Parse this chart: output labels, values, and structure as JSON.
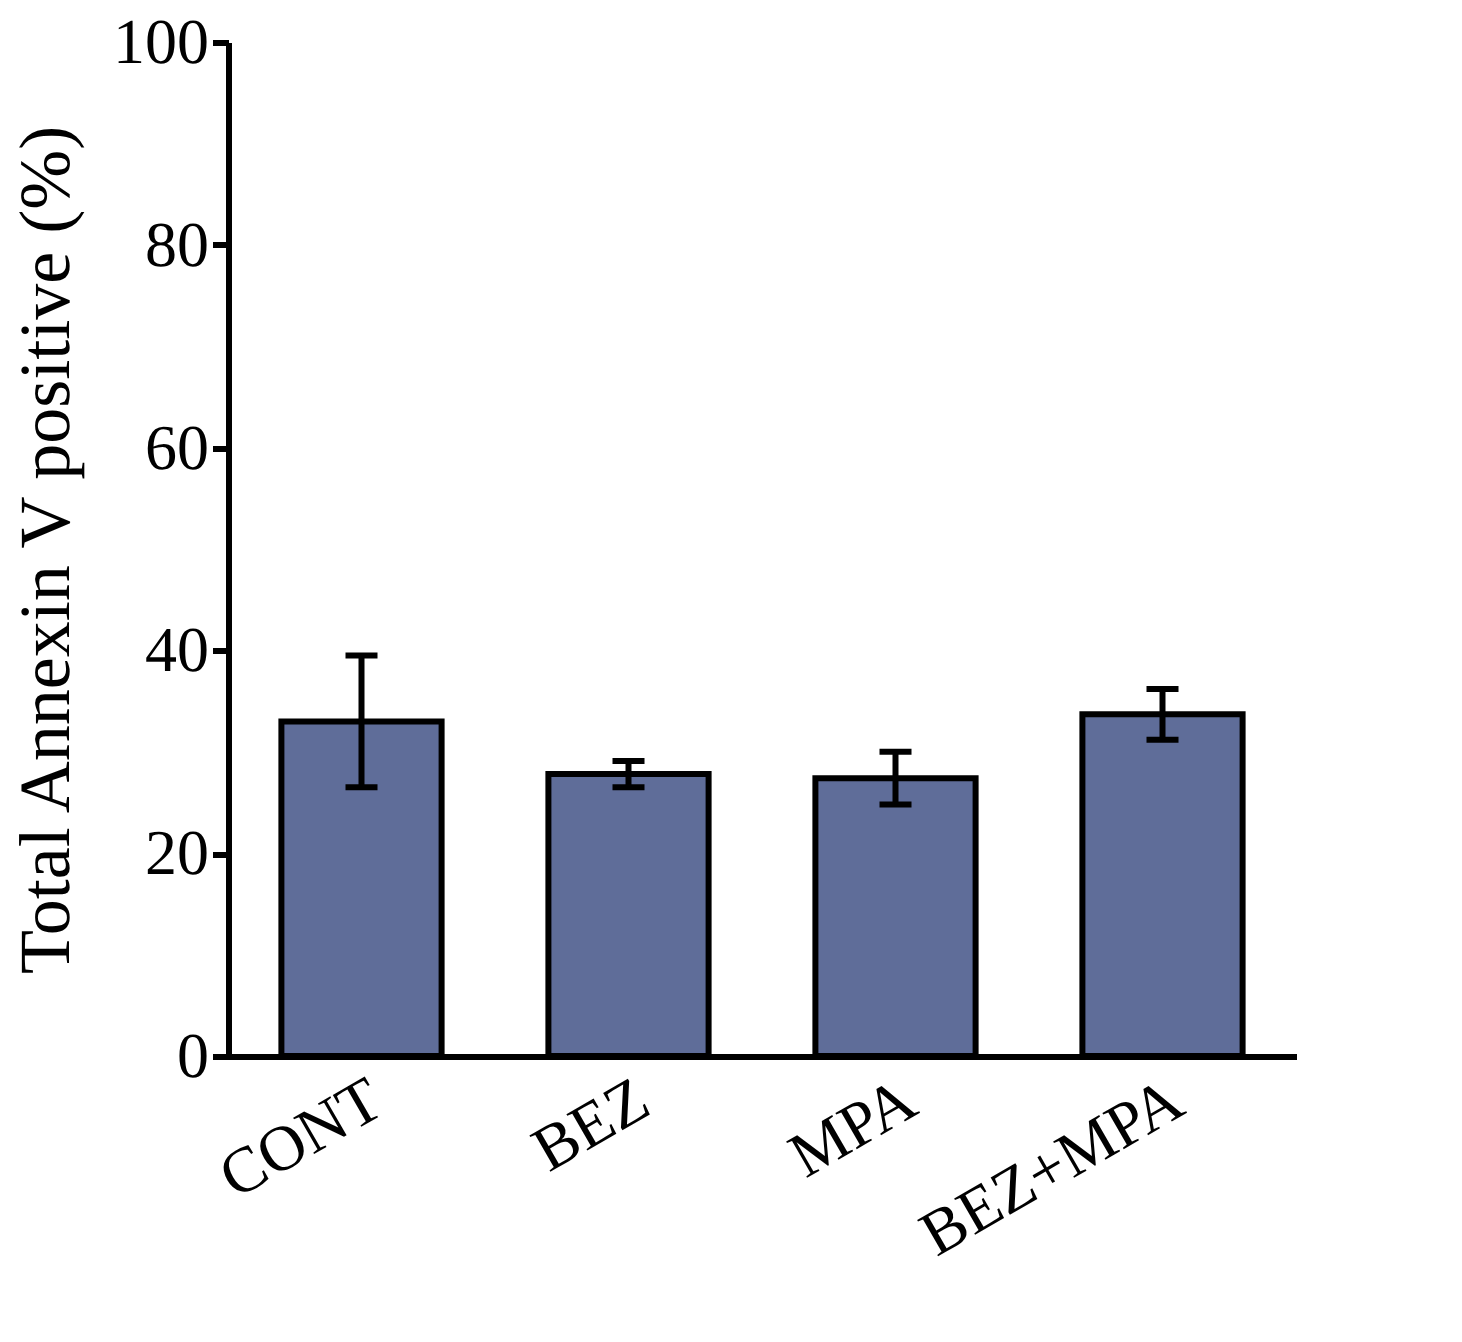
{
  "chart_data": {
    "type": "bar",
    "ylabel": "Total Annexin V positive (%)",
    "categories": [
      "CONT",
      "BEZ",
      "MPA",
      "BEZ+MPA"
    ],
    "values": [
      33,
      27.8,
      27.4,
      33.7
    ],
    "errors": [
      6.5,
      1.3,
      2.6,
      2.5
    ],
    "color": "#5f6d99",
    "ylim": [
      0,
      100
    ],
    "yticks": [
      0,
      20,
      40,
      60,
      80,
      100
    ],
    "grid": false
  }
}
